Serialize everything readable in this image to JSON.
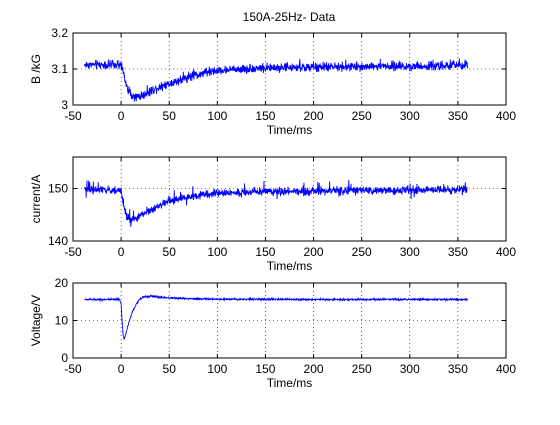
{
  "figure": {
    "title": "150A-25Hz- Data"
  },
  "colors": {
    "series": "#0000ff",
    "axes": "#000000",
    "grid": "#000000",
    "background": "#ffffff"
  },
  "chart_data": [
    {
      "type": "line",
      "title": "150A-25Hz- Data",
      "xlabel": "Time/ms",
      "ylabel": "B /kG",
      "xlim": [
        -50,
        400
      ],
      "ylim": [
        3.0,
        3.2
      ],
      "xticks": [
        -50,
        0,
        50,
        100,
        150,
        200,
        250,
        300,
        350,
        400
      ],
      "yticks": [
        3.0,
        3.1,
        3.2
      ],
      "xtick_labels": [
        "-50",
        "0",
        "50",
        "100",
        "150",
        "200",
        "250",
        "300",
        "350",
        "400"
      ],
      "ytick_labels": [
        "3",
        "3.1",
        "3.2"
      ],
      "grid": true,
      "noise": 0.006,
      "spikes": 0.012,
      "series": [
        {
          "x": [
            -38,
            -20,
            0,
            3,
            6,
            10,
            15,
            20,
            25,
            35,
            50,
            75,
            100,
            125,
            150,
            200,
            250,
            300,
            360
          ],
          "y": [
            3.112,
            3.112,
            3.11,
            3.085,
            3.05,
            3.03,
            3.022,
            3.025,
            3.03,
            3.045,
            3.06,
            3.082,
            3.095,
            3.1,
            3.103,
            3.105,
            3.107,
            3.108,
            3.11
          ]
        }
      ]
    },
    {
      "type": "line",
      "title": "",
      "xlabel": "Time/ms",
      "ylabel": "current/A",
      "xlim": [
        -50,
        400
      ],
      "ylim": [
        140,
        156
      ],
      "xticks": [
        -50,
        0,
        50,
        100,
        150,
        200,
        250,
        300,
        350,
        400
      ],
      "yticks": [
        140,
        150
      ],
      "xtick_labels": [
        "-50",
        "0",
        "50",
        "100",
        "150",
        "200",
        "250",
        "300",
        "350",
        "400"
      ],
      "ytick_labels": [
        "140",
        "150"
      ],
      "grid": true,
      "noise": 0.35,
      "spikes": 1.6,
      "series": [
        {
          "x": [
            -38,
            -20,
            0,
            3,
            6,
            10,
            15,
            20,
            30,
            40,
            50,
            75,
            100,
            150,
            200,
            250,
            300,
            360
          ],
          "y": [
            149.8,
            149.7,
            149.6,
            146.5,
            144.5,
            143.8,
            144.2,
            144.8,
            145.8,
            146.8,
            147.5,
            148.6,
            149.1,
            149.4,
            149.5,
            149.6,
            149.7,
            149.8
          ]
        }
      ]
    },
    {
      "type": "line",
      "title": "",
      "xlabel": "Time/ms",
      "ylabel": "Voltage/V",
      "xlim": [
        -50,
        400
      ],
      "ylim": [
        0,
        20
      ],
      "xticks": [
        -50,
        0,
        50,
        100,
        150,
        200,
        250,
        300,
        350,
        400
      ],
      "yticks": [
        0,
        10,
        20
      ],
      "xtick_labels": [
        "-50",
        "0",
        "50",
        "100",
        "150",
        "200",
        "250",
        "300",
        "350",
        "400"
      ],
      "ytick_labels": [
        "0",
        "10",
        "20"
      ],
      "grid": true,
      "noise": 0.12,
      "spikes": 0,
      "series": [
        {
          "x": [
            -38,
            -2,
            0,
            1,
            2,
            3,
            5,
            8,
            12,
            16,
            20,
            25,
            30,
            40,
            60,
            100,
            200,
            300,
            360
          ],
          "y": [
            15.6,
            15.6,
            14.5,
            10.0,
            6.5,
            5.0,
            6.5,
            9.5,
            12.5,
            14.5,
            15.8,
            16.4,
            16.5,
            16.2,
            15.9,
            15.7,
            15.6,
            15.6,
            15.6
          ]
        }
      ]
    }
  ]
}
